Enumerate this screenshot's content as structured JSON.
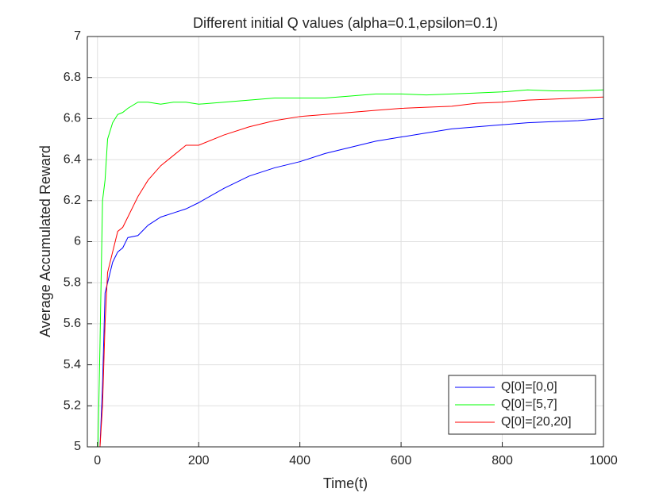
{
  "chart_data": {
    "type": "line",
    "title": "Different initial Q values (alpha=0.1,epsilon=0.1)",
    "x_label": "Time(t)",
    "y_label": "Average Accumulated Reward",
    "x": [
      1,
      5,
      10,
      15,
      20,
      30,
      40,
      50,
      60,
      80,
      100,
      125,
      150,
      175,
      200,
      250,
      300,
      350,
      400,
      450,
      500,
      550,
      600,
      650,
      700,
      750,
      800,
      850,
      900,
      950,
      1000
    ],
    "series": [
      {
        "name": "Q[0]=[0,0]",
        "color": "#0000ff",
        "values": [
          5.0,
          5.0,
          5.3,
          5.75,
          5.8,
          5.9,
          5.95,
          5.97,
          6.02,
          6.03,
          6.08,
          6.12,
          6.14,
          6.16,
          6.19,
          6.26,
          6.32,
          6.36,
          6.39,
          6.43,
          6.46,
          6.49,
          6.51,
          6.53,
          6.55,
          6.56,
          6.57,
          6.58,
          6.585,
          6.59,
          6.6
        ]
      },
      {
        "name": "Q[0]=[5,7]",
        "color": "#00ff00",
        "values": [
          5.0,
          5.5,
          6.2,
          6.3,
          6.5,
          6.58,
          6.62,
          6.63,
          6.65,
          6.68,
          6.68,
          6.67,
          6.68,
          6.68,
          6.67,
          6.68,
          6.69,
          6.7,
          6.7,
          6.7,
          6.71,
          6.72,
          6.72,
          6.715,
          6.72,
          6.725,
          6.73,
          6.74,
          6.735,
          6.735,
          6.74
        ]
      },
      {
        "name": "Q[0]=[20,20]",
        "color": "#ff0000",
        "values": [
          5.0,
          5.0,
          5.2,
          5.6,
          5.85,
          5.95,
          6.05,
          6.07,
          6.12,
          6.22,
          6.3,
          6.37,
          6.42,
          6.47,
          6.47,
          6.52,
          6.56,
          6.59,
          6.61,
          6.62,
          6.63,
          6.64,
          6.65,
          6.655,
          6.66,
          6.675,
          6.68,
          6.69,
          6.695,
          6.7,
          6.705
        ]
      }
    ],
    "xlim": [
      -20,
      1000
    ],
    "xticks": [
      0,
      200,
      400,
      600,
      800,
      1000
    ],
    "ylim": [
      5,
      7
    ],
    "yticks": [
      5,
      5.2,
      5.4,
      5.6,
      5.8,
      6,
      6.2,
      6.4,
      6.6,
      6.8,
      7
    ],
    "grid": true,
    "legend": "lower right"
  }
}
